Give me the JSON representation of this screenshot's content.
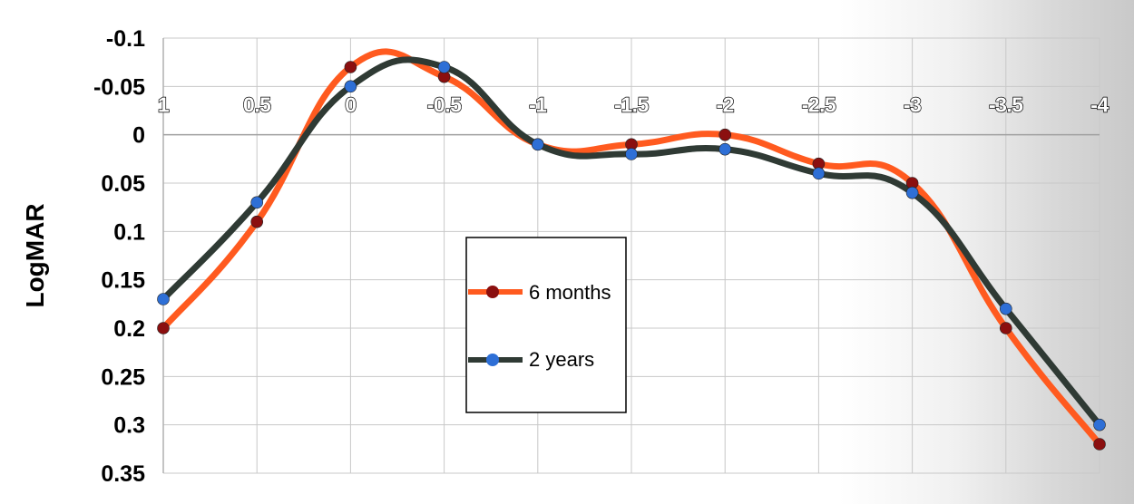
{
  "chart_data": {
    "type": "line",
    "title": "",
    "xlabel": "",
    "ylabel": "LogMAR",
    "x": [
      1,
      0.5,
      0,
      -0.5,
      -1,
      -1.5,
      -2,
      -2.5,
      -3,
      -3.5,
      -4
    ],
    "xtick_labels": [
      "1",
      "0.5",
      "0",
      "-0.5",
      "-1",
      "-1.5",
      "-2",
      "-2.5",
      "-3",
      "-3.5",
      "-4"
    ],
    "ytick_labels": [
      "-0.1",
      "-0.05",
      "0",
      "0.05",
      "0.1",
      "0.15",
      "0.2",
      "0.25",
      "0.3",
      "0.35"
    ],
    "ylim": [
      -0.1,
      0.35
    ],
    "y_axis_inverted": true,
    "grid": true,
    "legend_position": "center",
    "series": [
      {
        "name": "6 months",
        "line_color": "#ff5a1f",
        "marker_color": "#8b0f0f",
        "values": [
          0.2,
          0.09,
          -0.07,
          -0.06,
          0.01,
          0.01,
          0.0,
          0.03,
          0.05,
          0.2,
          0.32
        ]
      },
      {
        "name": "2 years",
        "line_color": "#2f3a34",
        "marker_color": "#2e6fd6",
        "values": [
          0.17,
          0.07,
          -0.05,
          -0.07,
          0.01,
          0.02,
          0.015,
          0.04,
          0.06,
          0.18,
          0.3
        ]
      }
    ]
  }
}
